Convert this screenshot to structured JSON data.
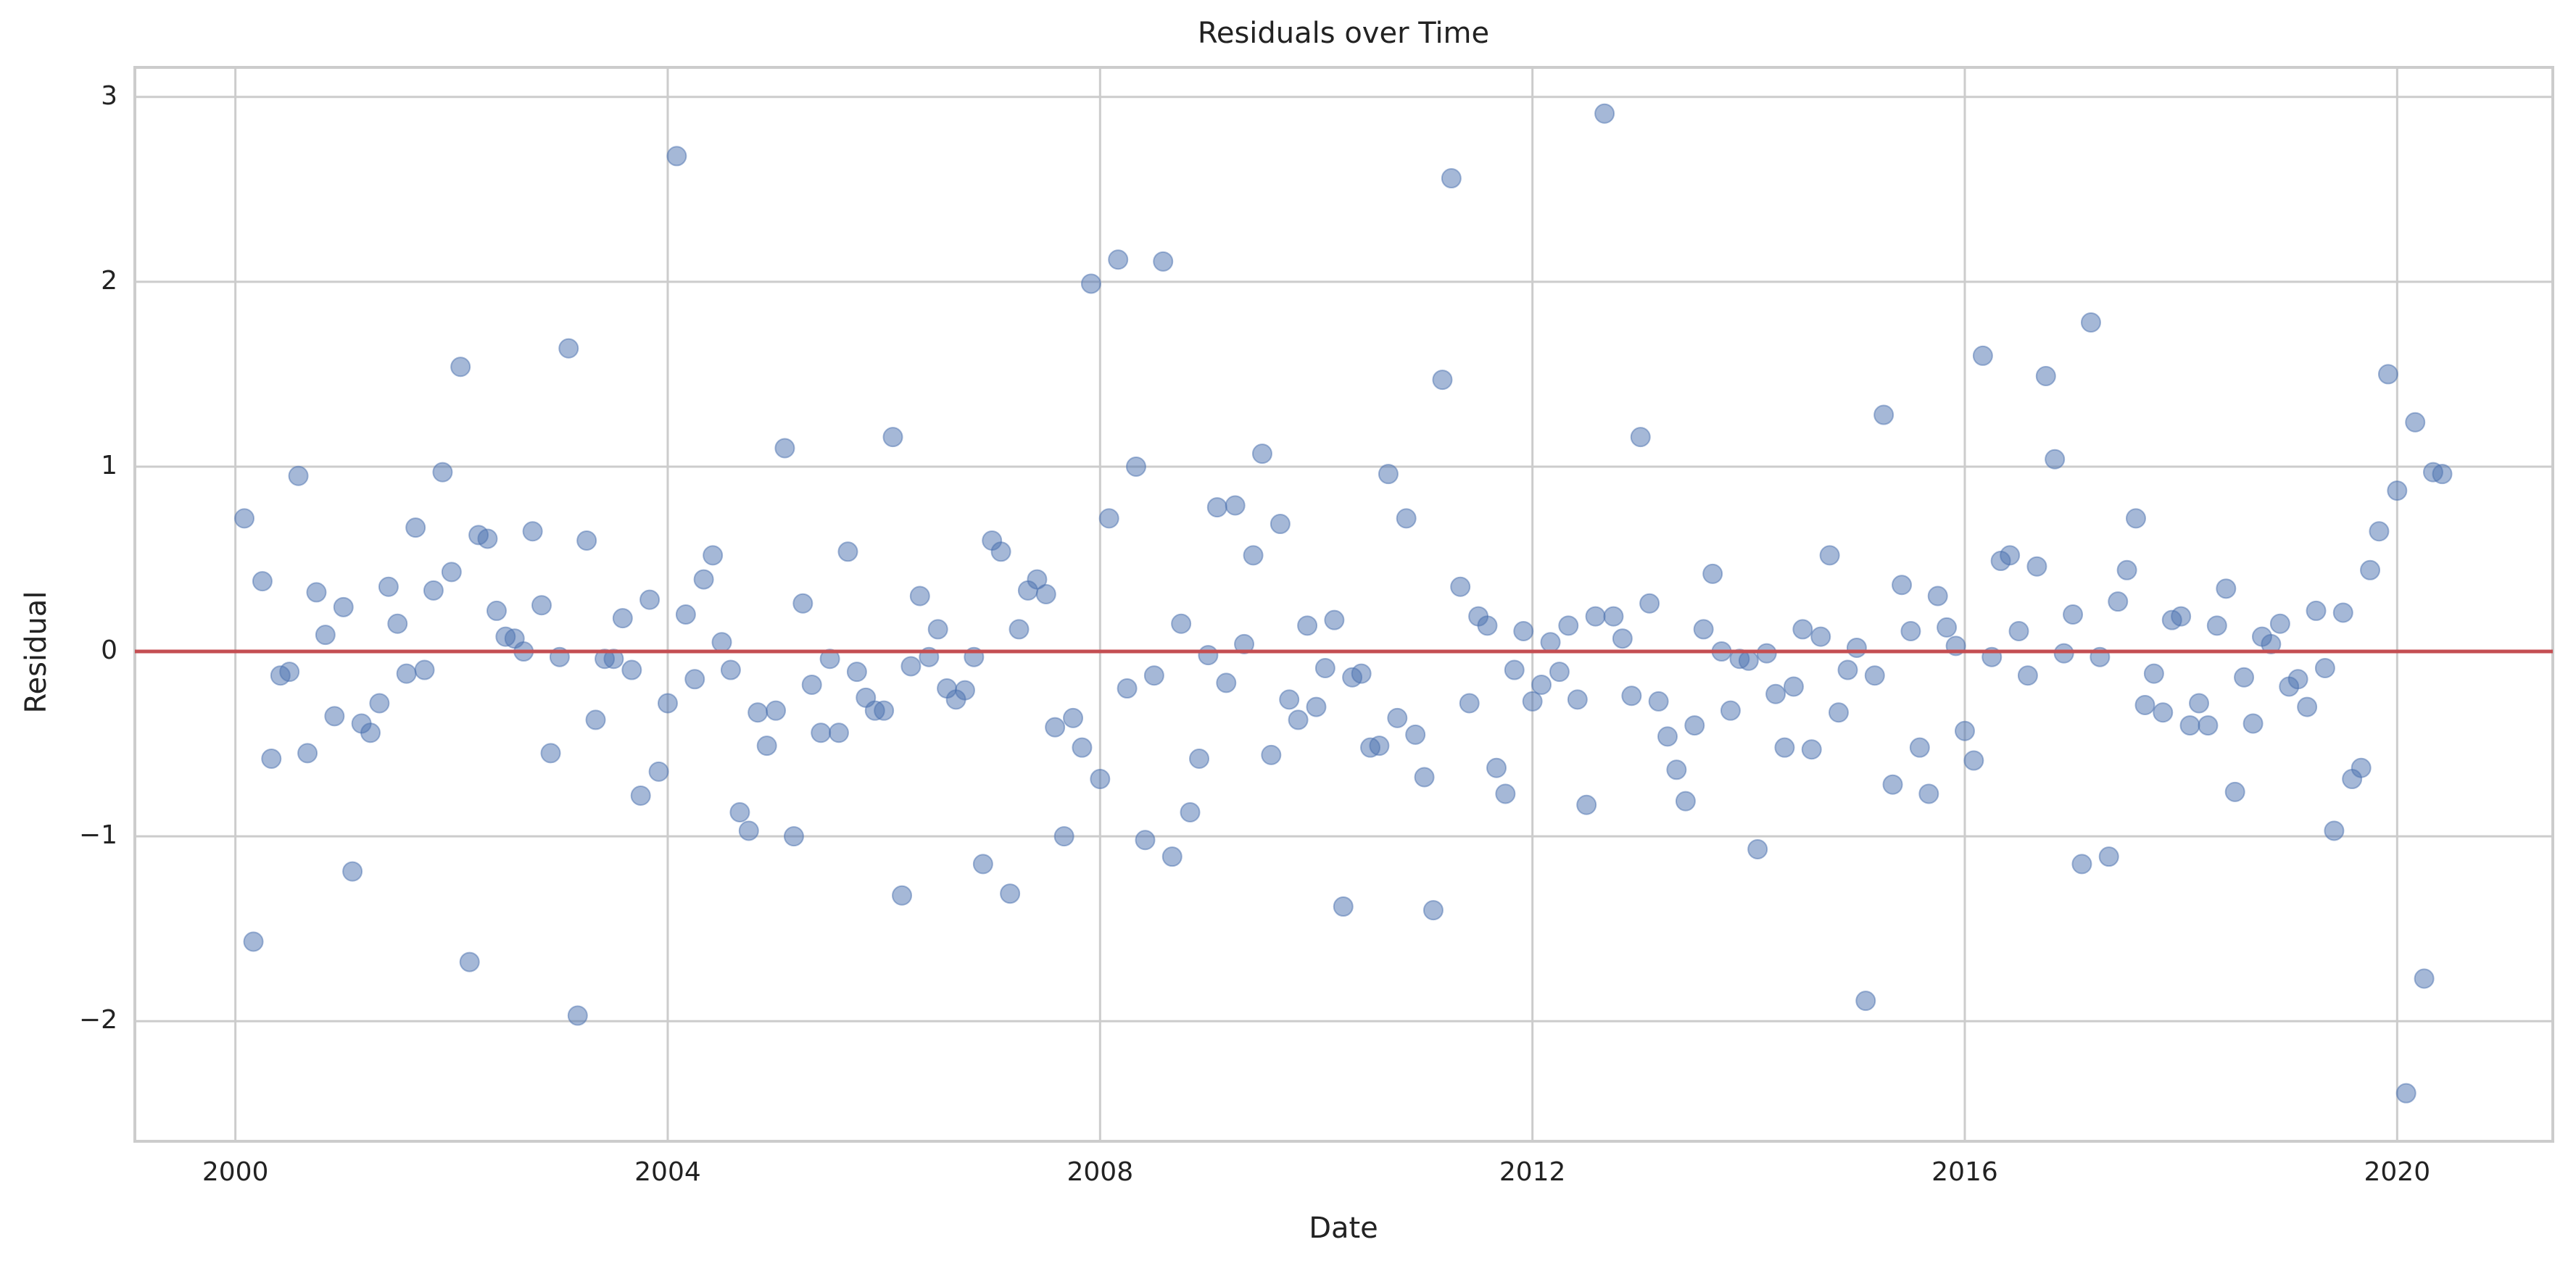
{
  "chart_data": {
    "type": "scatter",
    "title": "Residuals over Time",
    "x_label": "Date",
    "y_label": "Residual",
    "color": "#4c72b0",
    "alpha": 0.5,
    "grid": true,
    "hline": {
      "value": 0,
      "color": "#c44e52"
    },
    "xlim": [
      1999.07,
      2021.44
    ],
    "ylim": [
      -2.65,
      3.16
    ],
    "xticks": [
      2000,
      2004,
      2008,
      2012,
      2016,
      2020
    ],
    "yticks": [
      {
        "value": -2,
        "label": "−2"
      },
      {
        "value": -1,
        "label": "−1"
      },
      0,
      1,
      2,
      3
    ],
    "x": [
      2000.083,
      2000.167,
      2000.25,
      2000.333,
      2000.417,
      2000.5,
      2000.583,
      2000.667,
      2000.75,
      2000.833,
      2000.917,
      2001,
      2001.083,
      2001.167,
      2001.25,
      2001.333,
      2001.417,
      2001.5,
      2001.583,
      2001.667,
      2001.75,
      2001.833,
      2001.917,
      2002,
      2002.083,
      2002.167,
      2002.25,
      2002.333,
      2002.417,
      2002.5,
      2002.583,
      2002.667,
      2002.75,
      2002.833,
      2002.917,
      2003,
      2003.083,
      2003.167,
      2003.25,
      2003.333,
      2003.417,
      2003.5,
      2003.583,
      2003.667,
      2003.75,
      2003.833,
      2003.917,
      2004,
      2004.083,
      2004.167,
      2004.25,
      2004.333,
      2004.417,
      2004.5,
      2004.583,
      2004.667,
      2004.75,
      2004.833,
      2004.917,
      2005,
      2005.083,
      2005.167,
      2005.25,
      2005.333,
      2005.417,
      2005.5,
      2005.583,
      2005.667,
      2005.75,
      2005.833,
      2005.917,
      2006,
      2006.083,
      2006.167,
      2006.25,
      2006.333,
      2006.417,
      2006.5,
      2006.583,
      2006.667,
      2006.75,
      2006.833,
      2006.917,
      2007,
      2007.083,
      2007.167,
      2007.25,
      2007.333,
      2007.417,
      2007.5,
      2007.583,
      2007.667,
      2007.75,
      2007.833,
      2007.917,
      2008,
      2008.083,
      2008.167,
      2008.25,
      2008.333,
      2008.417,
      2008.5,
      2008.583,
      2008.667,
      2008.75,
      2008.833,
      2008.917,
      2009,
      2009.083,
      2009.167,
      2009.25,
      2009.333,
      2009.417,
      2009.5,
      2009.583,
      2009.667,
      2009.75,
      2009.833,
      2009.917,
      2010,
      2010.083,
      2010.167,
      2010.25,
      2010.333,
      2010.417,
      2010.5,
      2010.583,
      2010.667,
      2010.75,
      2010.833,
      2010.917,
      2011,
      2011.083,
      2011.167,
      2011.25,
      2011.333,
      2011.417,
      2011.5,
      2011.583,
      2011.667,
      2011.75,
      2011.833,
      2011.917,
      2012,
      2012.083,
      2012.167,
      2012.25,
      2012.333,
      2012.417,
      2012.5,
      2012.583,
      2012.667,
      2012.75,
      2012.833,
      2012.917,
      2013,
      2013.083,
      2013.167,
      2013.25,
      2013.333,
      2013.417,
      2013.5,
      2013.583,
      2013.667,
      2013.75,
      2013.833,
      2013.917,
      2014,
      2014.083,
      2014.167,
      2014.25,
      2014.333,
      2014.417,
      2014.5,
      2014.583,
      2014.667,
      2014.75,
      2014.833,
      2014.917,
      2015,
      2015.083,
      2015.167,
      2015.25,
      2015.333,
      2015.417,
      2015.5,
      2015.583,
      2015.667,
      2015.75,
      2015.833,
      2015.917,
      2016,
      2016.083,
      2016.167,
      2016.25,
      2016.333,
      2016.417,
      2016.5,
      2016.583,
      2016.667,
      2016.75,
      2016.833,
      2016.917,
      2017,
      2017.083,
      2017.167,
      2017.25,
      2017.333,
      2017.417,
      2017.5,
      2017.583,
      2017.667,
      2017.75,
      2017.833,
      2017.917,
      2018,
      2018.083,
      2018.167,
      2018.25,
      2018.333,
      2018.417,
      2018.5,
      2018.583,
      2018.667,
      2018.75,
      2018.833,
      2018.917,
      2019,
      2019.083,
      2019.167,
      2019.25,
      2019.333,
      2019.417,
      2019.5,
      2019.583,
      2019.667,
      2019.75,
      2019.833,
      2019.917,
      2020,
      2020.083,
      2020.167,
      2020.25,
      2020.333,
      2020.417
    ],
    "values": [
      0.72,
      -1.57,
      0.38,
      -0.58,
      -0.13,
      -0.11,
      0.95,
      -0.55,
      0.32,
      0.09,
      -0.35,
      0.24,
      -1.19,
      -0.39,
      -0.44,
      -0.28,
      0.35,
      0.15,
      -0.12,
      0.67,
      -0.1,
      0.33,
      0.97,
      0.43,
      1.54,
      -1.68,
      0.63,
      0.61,
      0.22,
      0.08,
      0.07,
      0.0,
      0.65,
      0.25,
      -0.55,
      -0.03,
      1.64,
      -1.97,
      0.6,
      -0.37,
      -0.04,
      -0.04,
      0.18,
      -0.1,
      -0.78,
      0.28,
      -0.65,
      -0.28,
      2.68,
      0.2,
      -0.15,
      0.39,
      0.52,
      0.05,
      -0.1,
      -0.87,
      -0.97,
      -0.33,
      -0.51,
      -0.32,
      1.1,
      -1.0,
      0.26,
      -0.18,
      -0.44,
      -0.04,
      -0.44,
      0.54,
      -0.11,
      -0.25,
      -0.32,
      -0.32,
      1.16,
      -1.32,
      -0.08,
      0.3,
      -0.03,
      0.12,
      -0.2,
      -0.26,
      -0.21,
      -0.03,
      -1.15,
      0.6,
      0.54,
      -1.31,
      0.12,
      0.33,
      0.39,
      0.31,
      -0.41,
      -1.0,
      -0.36,
      -0.52,
      1.99,
      -0.69,
      0.72,
      2.12,
      -0.2,
      1.0,
      -1.02,
      -0.13,
      2.11,
      -1.11,
      0.15,
      -0.87,
      -0.58,
      -0.02,
      0.78,
      -0.17,
      0.79,
      0.04,
      0.52,
      1.07,
      -0.56,
      0.69,
      -0.26,
      -0.37,
      0.14,
      -0.3,
      -0.09,
      0.17,
      -1.38,
      -0.14,
      -0.12,
      -0.52,
      -0.51,
      0.96,
      -0.36,
      0.72,
      -0.45,
      -0.68,
      -1.4,
      1.47,
      2.56,
      0.35,
      -0.28,
      0.19,
      0.14,
      -0.63,
      -0.77,
      -0.1,
      0.11,
      -0.27,
      -0.18,
      0.05,
      -0.11,
      0.14,
      -0.26,
      -0.83,
      0.19,
      2.91,
      0.19,
      0.07,
      -0.24,
      1.16,
      0.26,
      -0.27,
      -0.46,
      -0.64,
      -0.81,
      -0.4,
      0.12,
      0.42,
      0.0,
      -0.32,
      -0.04,
      -0.05,
      -1.07,
      -0.01,
      -0.23,
      -0.52,
      -0.19,
      0.12,
      -0.53,
      0.08,
      0.52,
      -0.33,
      -0.1,
      0.02,
      -1.89,
      -0.13,
      1.28,
      -0.72,
      0.36,
      0.11,
      -0.52,
      -0.77,
      0.3,
      0.13,
      0.03,
      -0.43,
      -0.59,
      1.6,
      -0.03,
      0.49,
      0.52,
      0.11,
      -0.13,
      0.46,
      1.49,
      1.04,
      -0.01,
      0.2,
      -1.15,
      1.78,
      -0.03,
      -1.11,
      0.27,
      0.44,
      0.72,
      -0.29,
      -0.12,
      -0.33,
      0.17,
      0.19,
      -0.4,
      -0.28,
      -0.4,
      0.14,
      0.34,
      -0.76,
      -0.14,
      -0.39,
      0.08,
      0.04,
      0.15,
      -0.19,
      -0.15,
      -0.3,
      0.22,
      -0.09,
      -0.97,
      0.21,
      -0.69,
      -0.63,
      0.44,
      0.65,
      1.5,
      0.87,
      -2.39,
      1.24,
      -1.77,
      0.97,
      0.96
    ]
  }
}
